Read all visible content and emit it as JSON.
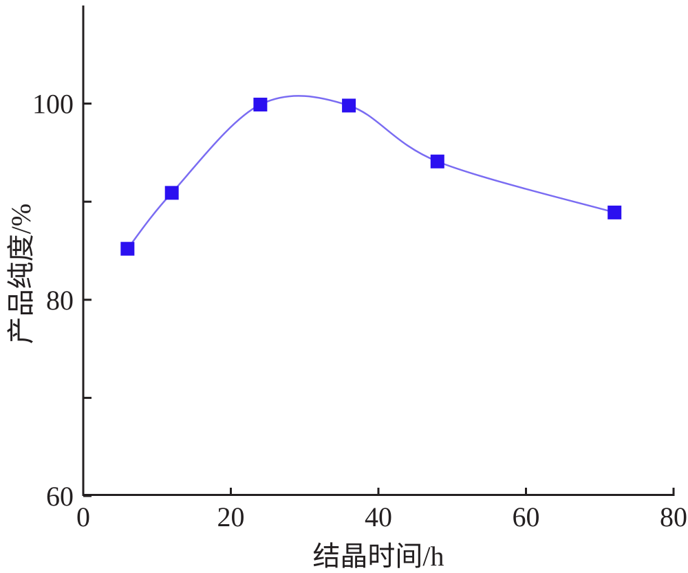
{
  "chart_data": {
    "type": "line",
    "xlabel": "结晶时间/h",
    "ylabel": "产品纯度/%",
    "xlim": [
      0,
      80
    ],
    "ylim": [
      60,
      110
    ],
    "x_ticks": [
      0,
      20,
      40,
      60,
      80
    ],
    "y_ticks_labeled": [
      60,
      80,
      100
    ],
    "y_ticks_minor": [
      70,
      90
    ],
    "grid": false,
    "legend": "none",
    "series": [
      {
        "points": [
          {
            "x": 6,
            "y": 85.2
          },
          {
            "x": 12,
            "y": 90.9
          },
          {
            "x": 24,
            "y": 99.9
          },
          {
            "x": 36,
            "y": 99.8
          },
          {
            "x": 48,
            "y": 94.1
          },
          {
            "x": 72,
            "y": 88.9
          }
        ],
        "marker": "square",
        "marker_color": "#2b10f0",
        "line_color": "#7a6cf2"
      }
    ]
  }
}
